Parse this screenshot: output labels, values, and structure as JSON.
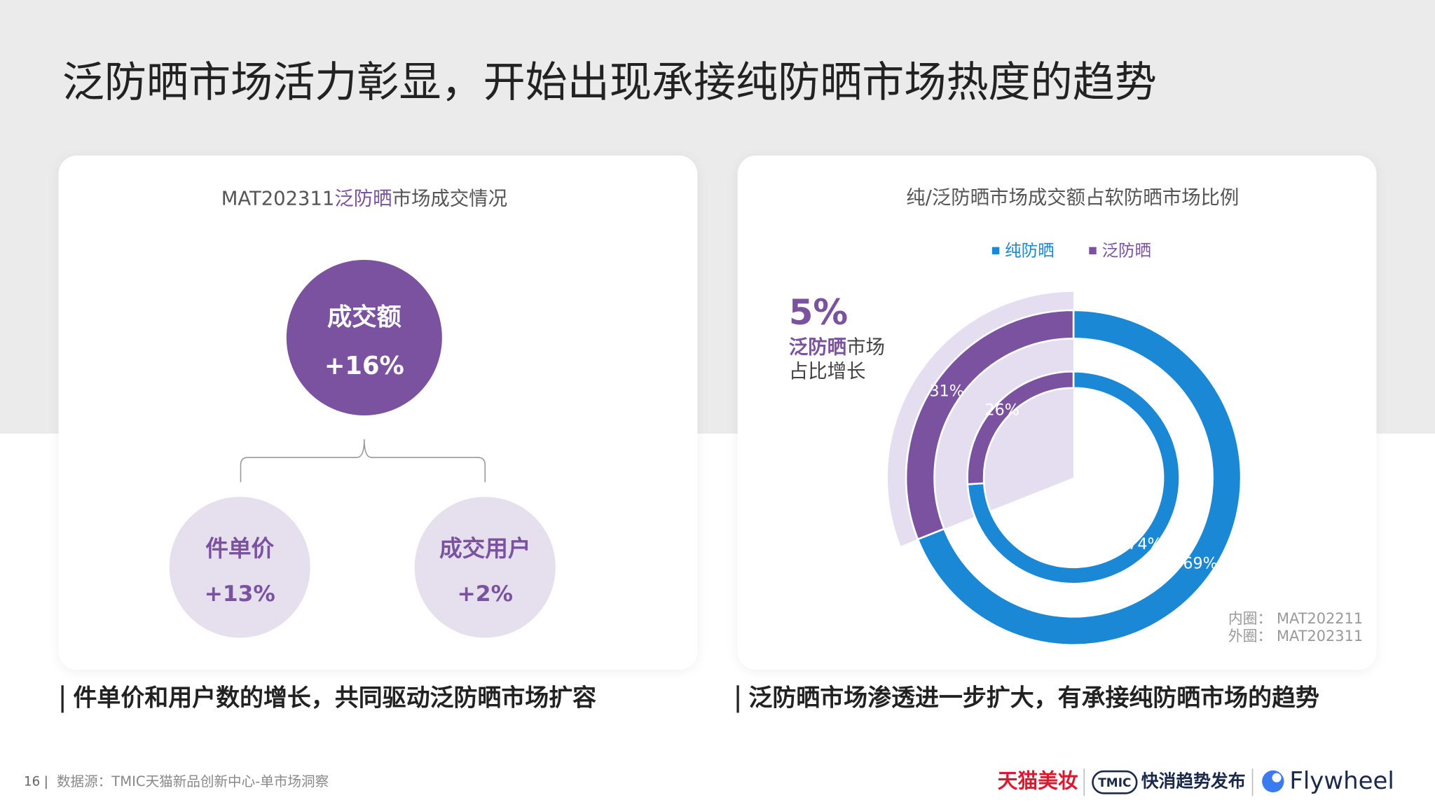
{
  "header": {
    "title": "泛防晒市场活力彰显，开始出现承接纯防晒市场热度的趋势"
  },
  "left_panel": {
    "title_parts": [
      "MAT202311",
      "泛防晒",
      "市场成交情况"
    ],
    "tree": {
      "root": {
        "label": "成交额",
        "value": "+16%"
      },
      "children": [
        {
          "label": "件单价",
          "value": "+13%"
        },
        {
          "label": "成交用户",
          "value": "+2%"
        }
      ]
    },
    "caption": "件单价和用户数的增长，共同驱动泛防晒市场扩容"
  },
  "chart_data": {
    "type": "donut",
    "title": "纯/泛防晒市场成交额占软防晒市场比例",
    "categories": [
      "MAT202211",
      "MAT202311"
    ],
    "ring_labels": [
      "内圈：",
      "外圈："
    ],
    "series": [
      {
        "name": "纯防晒",
        "color": "#1a88d4",
        "values": [
          74,
          69
        ],
        "value_labels": [
          "74%",
          "69%"
        ]
      },
      {
        "name": "泛防晒",
        "color": "#7a52a0",
        "values": [
          26,
          31
        ],
        "value_labels": [
          "26%",
          "31%"
        ]
      }
    ],
    "annotation": {
      "value": "5%",
      "text_parts": [
        "泛防晒",
        "市场",
        "占比增长"
      ]
    }
  },
  "right_panel": {
    "caption": "泛防晒市场渗透进一步扩大，有承接纯防晒市场的趋势"
  },
  "footer": {
    "page_number": "16",
    "separator": "|",
    "source": "数据源：TMIC天猫新品创新中心-单市场洞察",
    "logos": [
      "天猫美妆",
      "TMIC",
      "快消趋势发布",
      "Flywheel"
    ]
  }
}
